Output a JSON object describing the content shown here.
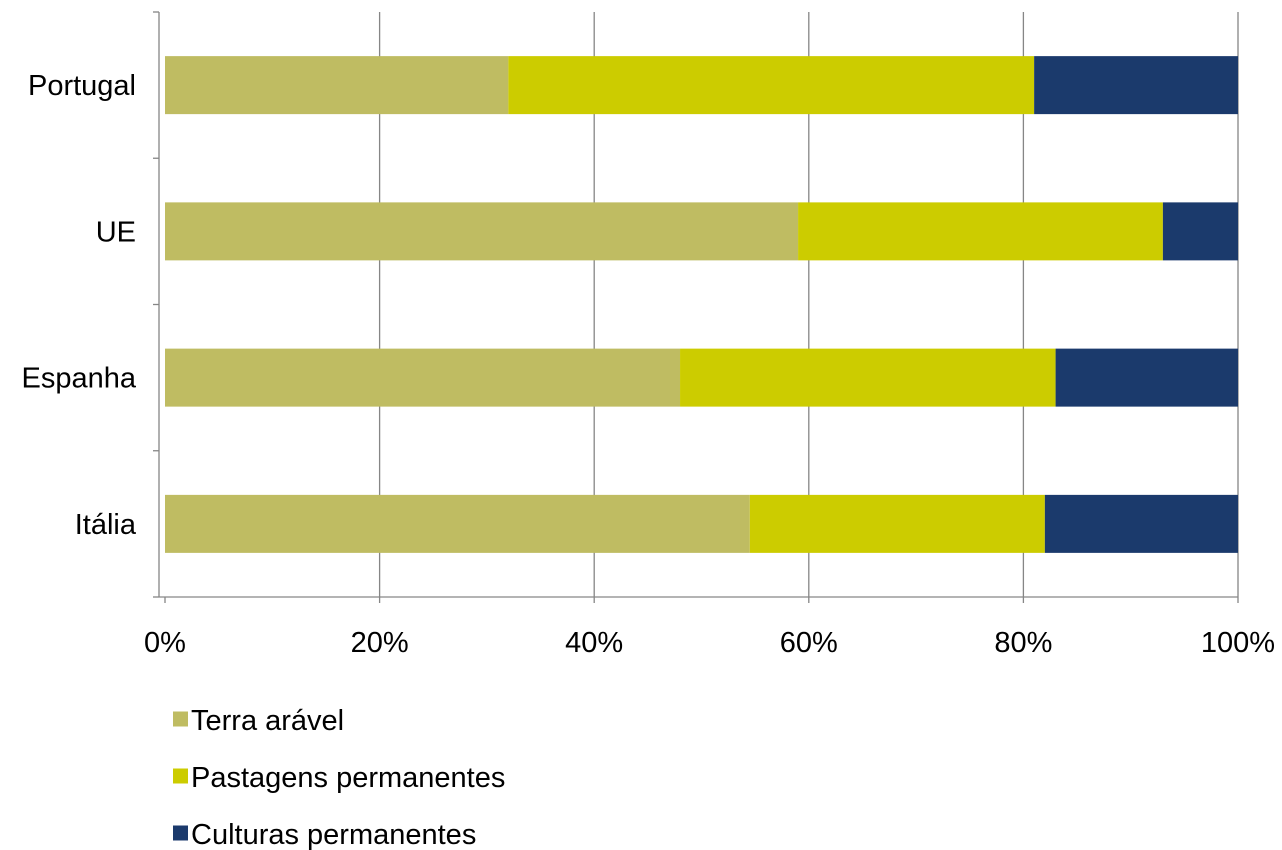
{
  "chart_data": {
    "type": "bar",
    "orientation": "horizontal",
    "stacked": "percent",
    "categories": [
      "Portugal",
      "UE",
      "Espanha",
      "Itália"
    ],
    "series": [
      {
        "name": "Terra arável",
        "color": "#bfbc62",
        "values": [
          32,
          59,
          48,
          54.5
        ]
      },
      {
        "name": "Pastagens permanentes",
        "color": "#cccc00",
        "values": [
          49,
          34,
          35,
          27.5
        ]
      },
      {
        "name": "Culturas permanentes",
        "color": "#1b3a6c",
        "values": [
          19,
          7,
          17,
          18
        ]
      }
    ],
    "xlim": [
      0,
      100
    ],
    "xticks": [
      "0%",
      "20%",
      "40%",
      "60%",
      "80%",
      "100%"
    ],
    "grid": true,
    "legend_position": "bottom-left"
  }
}
